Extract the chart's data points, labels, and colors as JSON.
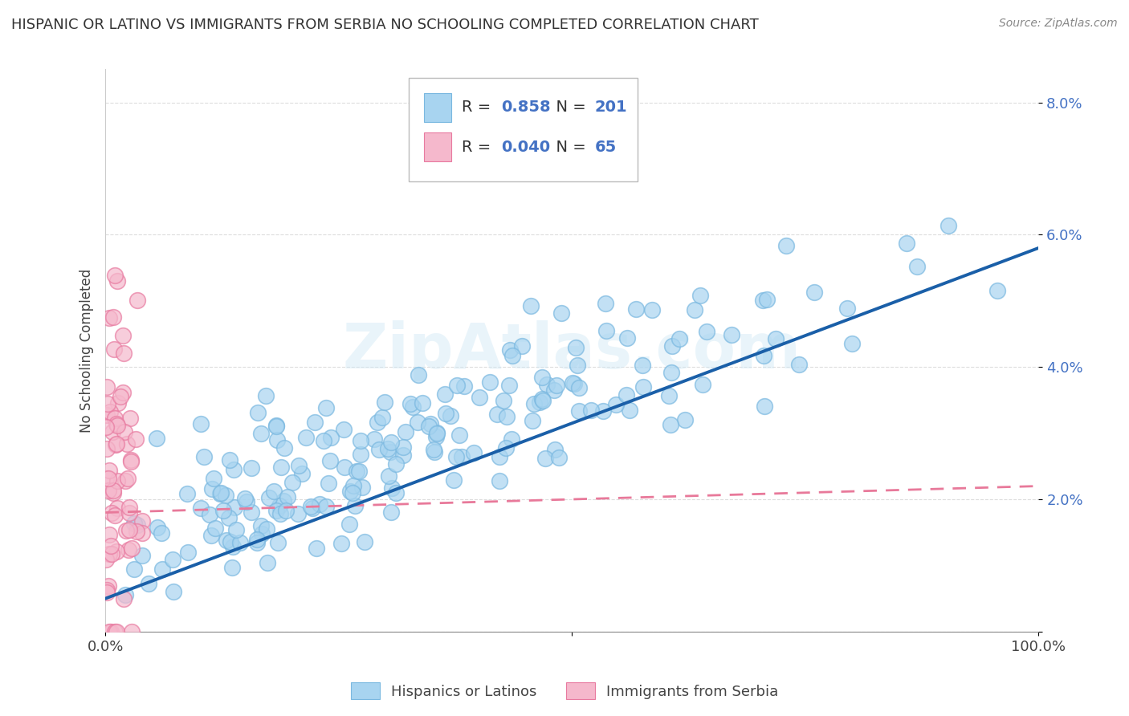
{
  "title": "HISPANIC OR LATINO VS IMMIGRANTS FROM SERBIA NO SCHOOLING COMPLETED CORRELATION CHART",
  "source": "Source: ZipAtlas.com",
  "ylabel": "No Schooling Completed",
  "xlim": [
    0,
    1.0
  ],
  "ylim": [
    0,
    0.085
  ],
  "xtick_positions": [
    0.0,
    0.5,
    1.0
  ],
  "xtick_labels": [
    "0.0%",
    "",
    "100.0%"
  ],
  "ytick_positions": [
    0.0,
    0.02,
    0.04,
    0.06,
    0.08
  ],
  "ytick_labels": [
    "",
    "2.0%",
    "4.0%",
    "6.0%",
    "8.0%"
  ],
  "series1_color": "#a8d4f0",
  "series1_edge_color": "#7ab8e0",
  "series2_color": "#f5b8cc",
  "series2_edge_color": "#e87aa0",
  "series1_line_color": "#1a5fa8",
  "series2_line_color": "#e8799a",
  "R1": 0.858,
  "N1": 201,
  "R2": 0.04,
  "N2": 65,
  "legend_label1": "Hispanics or Latinos",
  "legend_label2": "Immigrants from Serbia",
  "title_fontsize": 13,
  "label_fontsize": 12,
  "tick_fontsize": 13,
  "legend_fontsize": 13,
  "watermark": "ZipAtlas.com",
  "seed": 42,
  "line1_x0": 0.0,
  "line1_y0": 0.005,
  "line1_x1": 1.0,
  "line1_y1": 0.058,
  "line2_x0": 0.0,
  "line2_y0": 0.018,
  "line2_x1": 1.0,
  "line2_y1": 0.022
}
